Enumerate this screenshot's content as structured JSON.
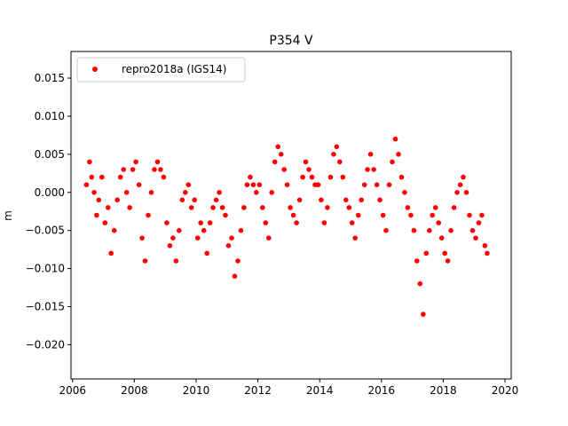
{
  "chart_data": {
    "type": "scatter",
    "title": "P354 V",
    "xlabel": "",
    "ylabel": "m",
    "xlim": [
      2005.95,
      2020.2
    ],
    "ylim": [
      -0.0245,
      0.0185
    ],
    "xticks": [
      2006,
      2008,
      2010,
      2012,
      2014,
      2016,
      2018,
      2020
    ],
    "xtick_labels": [
      "2006",
      "2008",
      "2010",
      "2012",
      "2014",
      "2016",
      "2018",
      "2020"
    ],
    "yticks": [
      0.015,
      0.01,
      0.005,
      0.0,
      -0.005,
      -0.01,
      -0.015,
      -0.02
    ],
    "ytick_labels": [
      "0.015",
      "0.010",
      "0.005",
      "0.000",
      "−0.005",
      "−0.010",
      "−0.015",
      "−0.020"
    ],
    "grid": false,
    "legend_position": "top-left",
    "series": [
      {
        "name": "repro2018a (IGS14)",
        "color": "#ff0000",
        "marker": "circle",
        "x": [
          2006.45,
          2006.55,
          2006.62,
          2006.7,
          2006.78,
          2006.85,
          2006.95,
          2007.05,
          2007.15,
          2007.25,
          2007.35,
          2007.45,
          2007.55,
          2007.65,
          2007.75,
          2007.85,
          2007.95,
          2008.05,
          2008.15,
          2008.25,
          2008.35,
          2008.45,
          2008.55,
          2008.65,
          2008.75,
          2008.85,
          2008.95,
          2009.05,
          2009.15,
          2009.25,
          2009.35,
          2009.45,
          2009.55,
          2009.65,
          2009.75,
          2009.85,
          2009.95,
          2010.05,
          2010.15,
          2010.25,
          2010.35,
          2010.45,
          2010.55,
          2010.65,
          2010.75,
          2010.85,
          2010.95,
          2011.05,
          2011.15,
          2011.25,
          2011.35,
          2011.45,
          2011.55,
          2011.65,
          2011.75,
          2011.85,
          2011.95,
          2012.05,
          2012.15,
          2012.25,
          2012.35,
          2012.45,
          2012.55,
          2012.65,
          2012.75,
          2012.85,
          2012.95,
          2013.05,
          2013.15,
          2013.25,
          2013.35,
          2013.45,
          2013.55,
          2013.65,
          2013.75,
          2013.85,
          2013.95,
          2014.05,
          2014.15,
          2014.25,
          2014.35,
          2014.45,
          2014.55,
          2014.65,
          2014.75,
          2014.85,
          2014.95,
          2015.05,
          2015.15,
          2015.25,
          2015.35,
          2015.45,
          2015.55,
          2015.65,
          2015.75,
          2015.85,
          2015.95,
          2016.05,
          2016.15,
          2016.25,
          2016.35,
          2016.45,
          2016.55,
          2016.65,
          2016.75,
          2016.85,
          2016.95,
          2017.05,
          2017.15,
          2017.25,
          2017.35,
          2017.45,
          2017.55,
          2017.65,
          2017.75,
          2017.85,
          2017.95,
          2018.05,
          2018.15,
          2018.25,
          2018.35,
          2018.45,
          2018.55,
          2018.65,
          2018.75,
          2018.85,
          2018.95,
          2019.05,
          2019.15,
          2019.25,
          2019.35,
          2019.42
        ],
        "y": [
          0.001,
          0.004,
          0.002,
          0.0,
          -0.003,
          -0.001,
          0.002,
          -0.004,
          -0.002,
          -0.008,
          -0.005,
          -0.001,
          0.002,
          0.003,
          0.0,
          -0.002,
          0.003,
          0.004,
          0.001,
          -0.006,
          -0.009,
          -0.003,
          0.0,
          0.003,
          0.004,
          0.003,
          0.002,
          -0.004,
          -0.007,
          -0.006,
          -0.009,
          -0.005,
          -0.001,
          0.0,
          0.001,
          -0.002,
          -0.001,
          -0.006,
          -0.004,
          -0.005,
          -0.008,
          -0.004,
          -0.002,
          -0.001,
          0.0,
          -0.002,
          -0.003,
          -0.007,
          -0.006,
          -0.011,
          -0.009,
          -0.005,
          -0.002,
          0.001,
          0.002,
          0.001,
          0.0,
          0.001,
          -0.002,
          -0.004,
          -0.006,
          0.0,
          0.004,
          0.006,
          0.005,
          0.003,
          0.001,
          -0.002,
          -0.003,
          -0.004,
          -0.001,
          0.002,
          0.004,
          0.003,
          0.002,
          0.001,
          0.001,
          -0.001,
          -0.004,
          -0.002,
          0.002,
          0.005,
          0.006,
          0.004,
          0.002,
          -0.001,
          -0.002,
          -0.004,
          -0.006,
          -0.003,
          -0.001,
          0.001,
          0.003,
          0.005,
          0.003,
          0.001,
          -0.001,
          -0.003,
          -0.005,
          0.001,
          0.004,
          0.007,
          0.005,
          0.002,
          0.0,
          -0.002,
          -0.003,
          -0.005,
          -0.009,
          -0.012,
          -0.016,
          -0.008,
          -0.005,
          -0.003,
          -0.002,
          -0.004,
          -0.006,
          -0.008,
          -0.009,
          -0.005,
          -0.002,
          0.0,
          0.001,
          0.002,
          0.0,
          -0.003,
          -0.005,
          -0.006,
          -0.004,
          -0.003,
          -0.007,
          -0.008
        ]
      }
    ]
  }
}
